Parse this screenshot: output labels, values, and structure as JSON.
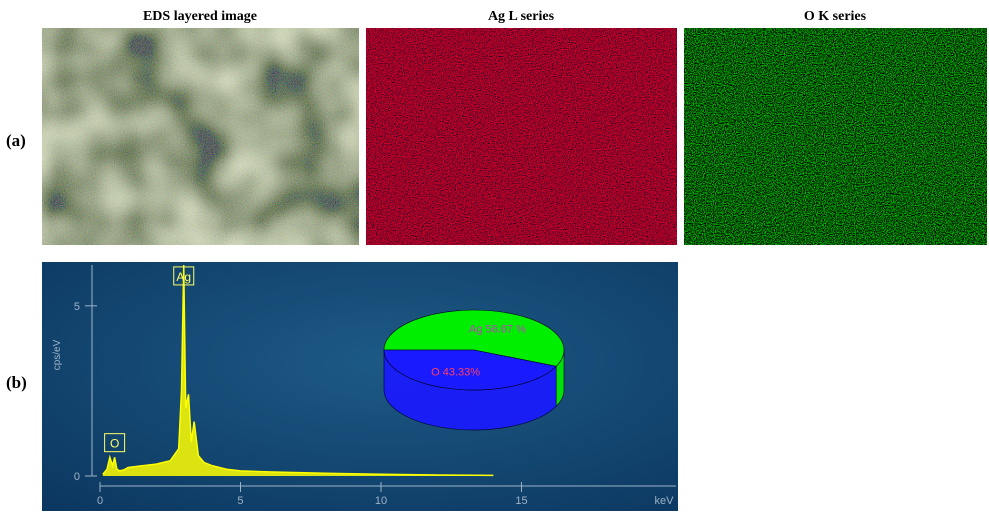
{
  "panels": [
    {
      "label": "(a)",
      "images": [
        {
          "title": "EDS layered image"
        },
        {
          "title": "Ag L series"
        },
        {
          "title": "O K series"
        }
      ]
    },
    {
      "label": "(b)"
    }
  ],
  "chart_data": [
    {
      "type": "line",
      "y_label": "cps/eV",
      "x_unit_label": "keV",
      "x": [
        0.1,
        0.25,
        0.35,
        0.45,
        0.52,
        0.6,
        0.7,
        0.85,
        1.0,
        1.5,
        2.0,
        2.5,
        2.8,
        2.9,
        2.98,
        3.05,
        3.15,
        3.25,
        3.35,
        3.5,
        3.7,
        4.0,
        4.5,
        5.0,
        6,
        8,
        10,
        12,
        14
      ],
      "series": [
        {
          "color": "#ffff00",
          "values": [
            0.05,
            0.2,
            0.55,
            0.3,
            0.55,
            0.2,
            0.15,
            0.18,
            0.25,
            0.3,
            0.35,
            0.45,
            0.8,
            2.5,
            6.2,
            2.0,
            2.4,
            1.0,
            1.6,
            0.6,
            0.4,
            0.3,
            0.2,
            0.15,
            0.12,
            0.08,
            0.05,
            0.03,
            0.02
          ]
        }
      ],
      "xlim": [
        0,
        20.5
      ],
      "ylim": [
        0,
        6.2
      ],
      "xticks": [
        0,
        5,
        10,
        15
      ],
      "yticks": [
        0,
        5
      ],
      "annotations": [
        {
          "text": "Ag",
          "x": 2.98,
          "y": 5.85
        },
        {
          "text": "O",
          "x": 0.52,
          "y": 0.95
        }
      ]
    },
    {
      "type": "pie",
      "categories": [
        "Ag",
        "O"
      ],
      "values": [
        56.67,
        43.33
      ],
      "value_labels": [
        "Ag 56.67 %",
        "O 43.33%"
      ],
      "colors": [
        "#00ee00",
        "#1a1aff"
      ]
    }
  ]
}
